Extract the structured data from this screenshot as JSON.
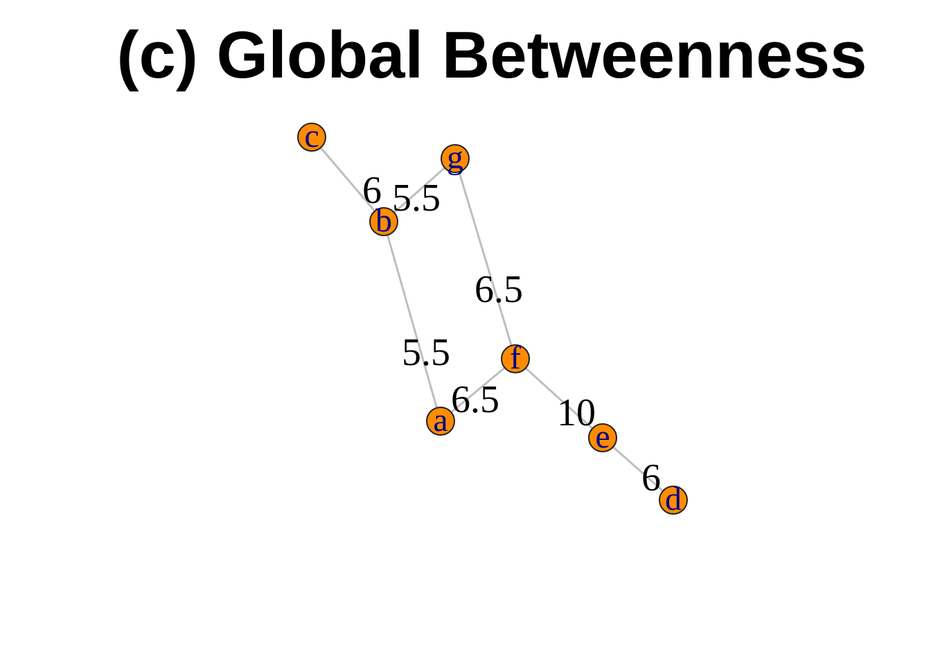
{
  "title": "(c) Global Betweenness",
  "colors": {
    "node_fill": "#ff8c00",
    "node_stroke": "#222222",
    "node_label": "#00008b",
    "edge": "#bebebe"
  },
  "nodes": [
    {
      "id": "a",
      "label": "a"
    },
    {
      "id": "b",
      "label": "b"
    },
    {
      "id": "c",
      "label": "c"
    },
    {
      "id": "d",
      "label": "d"
    },
    {
      "id": "e",
      "label": "e"
    },
    {
      "id": "f",
      "label": "f"
    },
    {
      "id": "g",
      "label": "g"
    }
  ],
  "edges": [
    {
      "source": "c",
      "target": "b",
      "label": "6"
    },
    {
      "source": "b",
      "target": "g",
      "label": "5.5"
    },
    {
      "source": "b",
      "target": "a",
      "label": "5.5"
    },
    {
      "source": "g",
      "target": "f",
      "label": "6.5"
    },
    {
      "source": "a",
      "target": "f",
      "label": "6.5"
    },
    {
      "source": "f",
      "target": "e",
      "label": "10"
    },
    {
      "source": "e",
      "target": "d",
      "label": "6"
    }
  ]
}
